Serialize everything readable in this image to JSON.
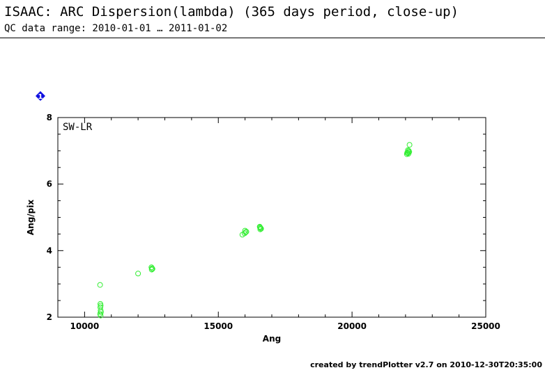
{
  "header": {
    "title": "ISAAC: ARC Dispersion(lambda) (365 days period, close-up)",
    "subtitle": "QC data range: 2010-01-01 … 2011-01-02"
  },
  "footer": {
    "credit": "created by trendPlotter v2.7 on 2010-12-30T20:35:00"
  },
  "panel": {
    "marker": "1",
    "marker_color": "#1010e0"
  },
  "chart_data": {
    "type": "scatter",
    "panel_label": "SW-LR",
    "xlabel": "Ang",
    "ylabel": "Ang/pix",
    "xlim": [
      9000,
      25000
    ],
    "ylim": [
      2,
      8
    ],
    "xticks": [
      10000,
      15000,
      20000,
      25000
    ],
    "yticks": [
      2,
      4,
      6,
      8
    ],
    "marker_color": "#33ee33",
    "series": [
      {
        "points": [
          [
            10580,
            2.97
          ],
          [
            10590,
            2.4
          ],
          [
            10600,
            2.35
          ],
          [
            10590,
            2.3
          ],
          [
            10600,
            2.2
          ],
          [
            10610,
            2.15
          ],
          [
            10580,
            2.1
          ],
          [
            10600,
            2.05
          ],
          [
            12000,
            3.31
          ],
          [
            12500,
            3.5
          ],
          [
            12520,
            3.47
          ],
          [
            12540,
            3.45
          ],
          [
            12510,
            3.43
          ],
          [
            15900,
            4.48
          ],
          [
            15980,
            4.52
          ],
          [
            16020,
            4.55
          ],
          [
            16050,
            4.57
          ],
          [
            16000,
            4.6
          ],
          [
            16550,
            4.72
          ],
          [
            16560,
            4.7
          ],
          [
            16580,
            4.68
          ],
          [
            16600,
            4.66
          ],
          [
            16570,
            4.64
          ],
          [
            22050,
            6.9
          ],
          [
            22080,
            6.93
          ],
          [
            22100,
            6.96
          ],
          [
            22120,
            7.0
          ],
          [
            22090,
            7.02
          ],
          [
            22060,
            6.94
          ],
          [
            22110,
            6.91
          ],
          [
            22140,
            6.97
          ],
          [
            22150,
            7.18
          ]
        ]
      }
    ]
  }
}
